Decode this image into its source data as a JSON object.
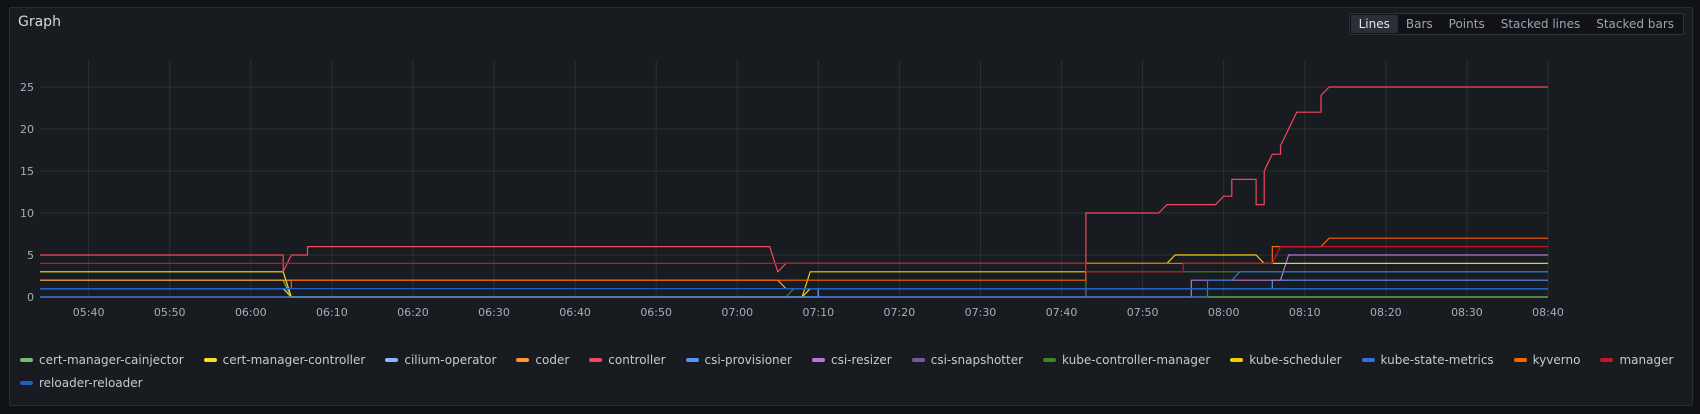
{
  "panel": {
    "title": "Graph",
    "modes": [
      "Lines",
      "Bars",
      "Points",
      "Stacked lines",
      "Stacked bars"
    ],
    "active_mode": "Lines"
  },
  "chart_data": {
    "type": "line",
    "y_ticks": [
      "0",
      "5",
      "10",
      "15",
      "20",
      "25"
    ],
    "ylim": [
      0,
      27.5
    ],
    "x_ticks": [
      "05:40",
      "05:50",
      "06:00",
      "06:10",
      "06:20",
      "06:30",
      "06:40",
      "06:50",
      "07:00",
      "07:10",
      "07:20",
      "07:30",
      "07:40",
      "07:50",
      "08:00",
      "08:10",
      "08:20",
      "08:30",
      "08:40"
    ],
    "xlim": [
      "05:34",
      "08:40"
    ],
    "grid": true,
    "legend_placement": "bottom",
    "series": [
      {
        "name": "cert-manager-cainjector",
        "color": "#73bf69",
        "points": [
          [
            "05:34",
            2
          ],
          [
            "06:04",
            2
          ],
          [
            "06:05",
            0
          ],
          [
            "08:40",
            0
          ]
        ]
      },
      {
        "name": "cert-manager-controller",
        "color": "#fade2a",
        "points": [
          [
            "05:34",
            3
          ],
          [
            "06:04",
            3
          ],
          [
            "06:05",
            0
          ],
          [
            "07:08",
            0
          ],
          [
            "07:09",
            1
          ],
          [
            "08:40",
            1
          ]
        ]
      },
      {
        "name": "cilium-operator",
        "color": "#8ab8ff",
        "points": [
          [
            "05:34",
            1
          ],
          [
            "06:04",
            1
          ],
          [
            "06:05",
            0
          ],
          [
            "07:10",
            0
          ],
          [
            "07:10",
            1
          ],
          [
            "08:40",
            1
          ]
        ]
      },
      {
        "name": "coder",
        "color": "#ff9830",
        "points": [
          [
            "05:34",
            2
          ],
          [
            "06:04",
            2
          ],
          [
            "06:05",
            2
          ],
          [
            "07:05",
            2
          ],
          [
            "07:06",
            1
          ],
          [
            "08:40",
            1
          ]
        ]
      },
      {
        "name": "controller",
        "color": "#f2495c",
        "points": [
          [
            "05:34",
            5
          ],
          [
            "06:04",
            5
          ],
          [
            "06:04",
            3
          ],
          [
            "06:05",
            5
          ],
          [
            "06:07",
            5
          ],
          [
            "06:07",
            6
          ],
          [
            "07:04",
            6
          ],
          [
            "07:05",
            3
          ],
          [
            "07:06",
            4
          ],
          [
            "07:43",
            4
          ],
          [
            "07:43",
            10
          ],
          [
            "07:52",
            10
          ],
          [
            "07:53",
            11
          ],
          [
            "07:59",
            11
          ],
          [
            "08:00",
            12
          ],
          [
            "08:01",
            12
          ],
          [
            "08:01",
            14
          ],
          [
            "08:04",
            14
          ],
          [
            "08:04",
            11
          ],
          [
            "08:05",
            11
          ],
          [
            "08:05",
            15
          ],
          [
            "08:06",
            17
          ],
          [
            "08:07",
            17
          ],
          [
            "08:07",
            18
          ],
          [
            "08:08",
            20
          ],
          [
            "08:09",
            22
          ],
          [
            "08:12",
            22
          ],
          [
            "08:12",
            24
          ],
          [
            "08:13",
            25
          ],
          [
            "08:40",
            25
          ]
        ]
      },
      {
        "name": "csi-provisioner",
        "color": "#5794f2",
        "points": [
          [
            "05:34",
            1
          ],
          [
            "06:04",
            1
          ],
          [
            "06:05",
            0
          ],
          [
            "07:10",
            0
          ],
          [
            "07:10",
            1
          ],
          [
            "08:06",
            1
          ],
          [
            "08:06",
            2
          ],
          [
            "08:40",
            2
          ]
        ]
      },
      {
        "name": "csi-resizer",
        "color": "#b877d9",
        "points": [
          [
            "05:34",
            0
          ],
          [
            "07:56",
            0
          ],
          [
            "07:56",
            2
          ],
          [
            "08:07",
            2
          ],
          [
            "08:08",
            5
          ],
          [
            "08:40",
            5
          ]
        ]
      },
      {
        "name": "csi-snapshotter",
        "color": "#705da0",
        "points": [
          [
            "05:34",
            0
          ],
          [
            "07:43",
            0
          ],
          [
            "07:43",
            1
          ],
          [
            "08:40",
            1
          ]
        ]
      },
      {
        "name": "kube-controller-manager",
        "color": "#37872d",
        "points": [
          [
            "05:34",
            1
          ],
          [
            "06:04",
            1
          ],
          [
            "06:05",
            0
          ],
          [
            "07:06",
            0
          ],
          [
            "07:07",
            1
          ],
          [
            "07:43",
            1
          ],
          [
            "07:43",
            3
          ],
          [
            "08:40",
            3
          ]
        ]
      },
      {
        "name": "kube-scheduler",
        "color": "#f2cc0c",
        "points": [
          [
            "05:34",
            1
          ],
          [
            "06:04",
            1
          ],
          [
            "06:05",
            0
          ],
          [
            "07:08",
            0
          ],
          [
            "07:09",
            3
          ],
          [
            "07:43",
            3
          ],
          [
            "07:43",
            4
          ],
          [
            "07:53",
            4
          ],
          [
            "07:54",
            5
          ],
          [
            "08:04",
            5
          ],
          [
            "08:05",
            4
          ],
          [
            "08:40",
            4
          ]
        ]
      },
      {
        "name": "kube-state-metrics",
        "color": "#3274d9",
        "points": [
          [
            "05:34",
            0
          ],
          [
            "07:58",
            0
          ],
          [
            "07:58",
            2
          ],
          [
            "08:01",
            2
          ],
          [
            "08:02",
            3
          ],
          [
            "08:40",
            3
          ]
        ]
      },
      {
        "name": "kyverno",
        "color": "#fa6400",
        "points": [
          [
            "05:34",
            1
          ],
          [
            "06:05",
            1
          ],
          [
            "06:05",
            2
          ],
          [
            "07:43",
            2
          ],
          [
            "07:43",
            4
          ],
          [
            "08:06",
            4
          ],
          [
            "08:06",
            6
          ],
          [
            "08:12",
            6
          ],
          [
            "08:13",
            7
          ],
          [
            "08:40",
            7
          ]
        ]
      },
      {
        "name": "manager",
        "color": "#c4162a",
        "points": [
          [
            "05:34",
            4
          ],
          [
            "06:04",
            4
          ],
          [
            "06:05",
            4
          ],
          [
            "07:43",
            4
          ],
          [
            "07:43",
            3
          ],
          [
            "07:55",
            3
          ],
          [
            "07:55",
            4
          ],
          [
            "08:06",
            4
          ],
          [
            "08:07",
            6
          ],
          [
            "08:40",
            6
          ]
        ]
      },
      {
        "name": "reloader-reloader",
        "color": "#1f60c4",
        "points": [
          [
            "05:34",
            1
          ],
          [
            "06:04",
            1
          ],
          [
            "06:05",
            1
          ],
          [
            "08:40",
            1
          ]
        ]
      }
    ]
  }
}
